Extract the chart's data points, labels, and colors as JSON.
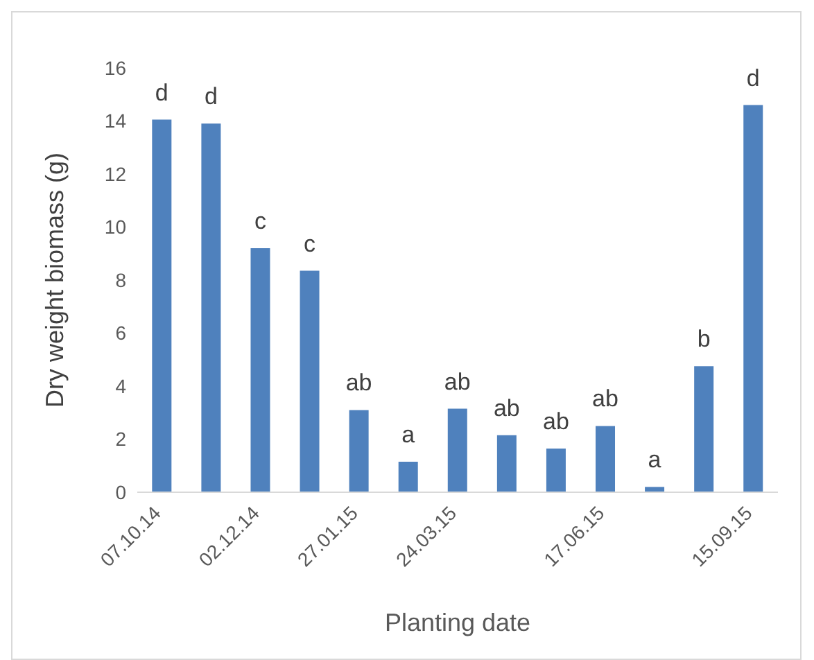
{
  "chart_data": {
    "type": "bar",
    "xlabel": "Planting date",
    "ylabel": "Dry weight biomass (g)",
    "categories": [
      "07.10.14",
      null,
      "02.12.14",
      null,
      "27.01.15",
      null,
      "24.03.15",
      null,
      null,
      "17.06.15",
      null,
      null,
      "15.09.15"
    ],
    "values": [
      14.05,
      13.9,
      9.2,
      8.35,
      3.1,
      1.15,
      3.15,
      2.15,
      1.65,
      2.5,
      0.2,
      4.75,
      14.6
    ],
    "value_labels": [
      "d",
      "d",
      "c",
      "c",
      "ab",
      "a",
      "ab",
      "ab",
      "ab",
      "ab",
      "a",
      "b",
      "d"
    ],
    "color": "#4f81bd",
    "ylim": [
      0,
      16
    ],
    "yticks": [
      0,
      2,
      4,
      6,
      8,
      10,
      12,
      14,
      16
    ]
  }
}
